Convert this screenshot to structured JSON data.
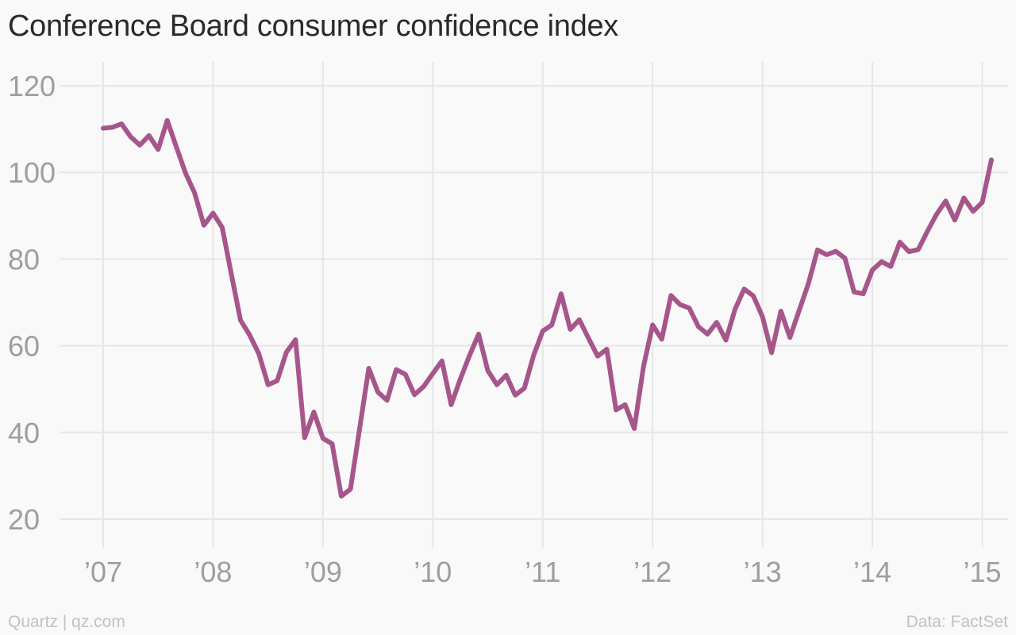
{
  "header": {
    "title": "Conference Board consumer confidence index"
  },
  "footer": {
    "source_left": "Quartz | qz.com",
    "source_right": "Data: FactSet"
  },
  "colors": {
    "line": "#a6568b",
    "grid": "#e6e6e6",
    "axis_text": "#9e9e9e",
    "background": "#f9f9f9"
  },
  "chart_data": {
    "type": "line",
    "title": "Conference Board consumer confidence index",
    "xlabel": "",
    "ylabel": "",
    "ylim": [
      20,
      120
    ],
    "yticks": [
      20,
      40,
      60,
      80,
      100,
      120
    ],
    "xlim": [
      2007,
      2015.083
    ],
    "xtick_values": [
      2007,
      2008,
      2009,
      2010,
      2011,
      2012,
      2013,
      2014,
      2015
    ],
    "xtick_labels": [
      "’07",
      "’08",
      "’09",
      "’10",
      "’11",
      "’12",
      "’13",
      "’14",
      "’15"
    ],
    "grid": true,
    "series": [
      {
        "x": [
          2007.0,
          2007.083,
          2007.167,
          2007.25,
          2007.333,
          2007.417,
          2007.5,
          2007.583,
          2007.667,
          2007.75,
          2007.833,
          2007.917,
          2008.0,
          2008.083,
          2008.167,
          2008.25,
          2008.333,
          2008.417,
          2008.5,
          2008.583,
          2008.667,
          2008.75,
          2008.833,
          2008.917,
          2009.0,
          2009.083,
          2009.167,
          2009.25,
          2009.333,
          2009.417,
          2009.5,
          2009.583,
          2009.667,
          2009.75,
          2009.833,
          2009.917,
          2010.0,
          2010.083,
          2010.167,
          2010.25,
          2010.333,
          2010.417,
          2010.5,
          2010.583,
          2010.667,
          2010.75,
          2010.833,
          2010.917,
          2011.0,
          2011.083,
          2011.167,
          2011.25,
          2011.333,
          2011.417,
          2011.5,
          2011.583,
          2011.667,
          2011.75,
          2011.833,
          2011.917,
          2012.0,
          2012.083,
          2012.167,
          2012.25,
          2012.333,
          2012.417,
          2012.5,
          2012.583,
          2012.667,
          2012.75,
          2012.833,
          2012.917,
          2013.0,
          2013.083,
          2013.167,
          2013.25,
          2013.333,
          2013.417,
          2013.5,
          2013.583,
          2013.667,
          2013.75,
          2013.833,
          2013.917,
          2014.0,
          2014.083,
          2014.167,
          2014.25,
          2014.333,
          2014.417,
          2014.5,
          2014.583,
          2014.667,
          2014.75,
          2014.833,
          2014.917,
          2015.0,
          2015.083
        ],
        "values": [
          110.2,
          110.4,
          111.2,
          108.2,
          106.3,
          108.5,
          105.3,
          112.0,
          105.8,
          99.8,
          95.2,
          87.8,
          90.6,
          87.3,
          76.4,
          65.9,
          62.5,
          58.1,
          51.0,
          51.9,
          58.5,
          61.4,
          38.8,
          44.7,
          38.6,
          37.4,
          25.3,
          26.9,
          40.8,
          54.8,
          49.3,
          47.4,
          54.5,
          53.4,
          48.7,
          50.6,
          53.6,
          56.5,
          46.4,
          52.3,
          57.7,
          62.7,
          54.3,
          51.0,
          53.2,
          48.6,
          50.2,
          57.8,
          63.4,
          64.8,
          72.0,
          63.8,
          66.0,
          61.7,
          57.6,
          59.2,
          45.2,
          46.4,
          40.9,
          55.2,
          64.8,
          61.5,
          71.6,
          69.5,
          68.7,
          64.4,
          62.7,
          65.4,
          61.3,
          68.4,
          73.1,
          71.5,
          66.7,
          58.4,
          68.0,
          61.9,
          68.1,
          74.3,
          82.1,
          81.0,
          81.8,
          80.2,
          72.4,
          72.0,
          77.5,
          79.4,
          78.3,
          83.9,
          81.7,
          82.2,
          86.4,
          90.3,
          93.4,
          89.0,
          94.1,
          91.0,
          93.1,
          102.9
        ]
      }
    ]
  }
}
